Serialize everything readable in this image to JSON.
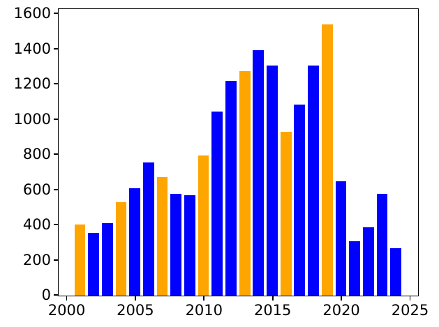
{
  "figure": {
    "background": "#ffffff"
  },
  "chart_data": {
    "type": "bar",
    "title": "",
    "xlabel": "",
    "ylabel": "",
    "x": [
      2001,
      2002,
      2003,
      2004,
      2005,
      2006,
      2007,
      2008,
      2009,
      2010,
      2011,
      2012,
      2013,
      2014,
      2015,
      2016,
      2017,
      2018,
      2019,
      2020,
      2021,
      2022,
      2023,
      2024
    ],
    "values": [
      405,
      355,
      410,
      530,
      610,
      755,
      675,
      580,
      570,
      795,
      1045,
      1220,
      1275,
      1395,
      1305,
      930,
      1085,
      1305,
      1540,
      650,
      310,
      390,
      580,
      270
    ],
    "bar_colors": [
      "orange",
      "blue",
      "blue",
      "orange",
      "blue",
      "blue",
      "orange",
      "blue",
      "blue",
      "orange",
      "blue",
      "blue",
      "orange",
      "blue",
      "blue",
      "orange",
      "blue",
      "blue",
      "orange",
      "blue",
      "blue",
      "blue",
      "blue",
      "blue"
    ],
    "palette": {
      "blue": "#0000ff",
      "orange": "#ffa500"
    },
    "axis_color": "#000000",
    "bar_width": 0.8,
    "xlim": [
      1999.45,
      2025.55
    ],
    "ylim": [
      0,
      1622
    ],
    "xticks": [
      2000,
      2005,
      2010,
      2015,
      2020,
      2025
    ],
    "yticks": [
      0,
      200,
      400,
      600,
      800,
      1000,
      1200,
      1400,
      1600
    ],
    "grid": false,
    "legend": null
  }
}
